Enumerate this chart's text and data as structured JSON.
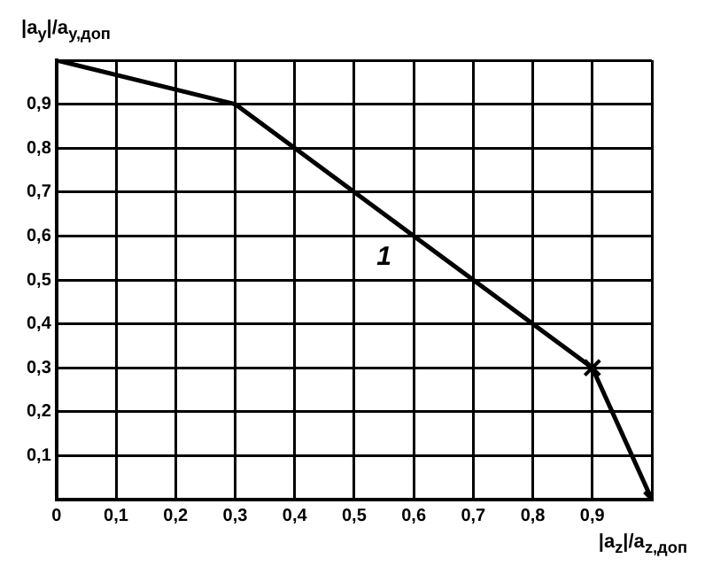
{
  "chart_data": {
    "type": "line",
    "xlabel": "|a$_{z}$|/a$_{z,доп}$",
    "ylabel": "|a$_{y}$|/a$_{y,доп}$",
    "x": [
      0,
      0.3,
      0.9,
      1
    ],
    "series": [
      {
        "color": "#000000",
        "values": [
          1,
          0.9,
          0.3,
          0
        ],
        "marker": "none"
      },
      {
        "type": "scatter",
        "color": "#000000",
        "x": [
          0.9,
          1
        ],
        "values": [
          0.3,
          0
        ],
        "marker": "cross"
      }
    ],
    "xlim": [
      0,
      1
    ],
    "ylim": [
      0,
      1
    ],
    "xticks": [
      {
        "value": 0,
        "label": "0"
      },
      {
        "value": 0.1,
        "label": "0,1"
      },
      {
        "value": 0.2,
        "label": "0,2"
      },
      {
        "value": 0.3,
        "label": "0,3"
      },
      {
        "value": 0.4,
        "label": "0,4"
      },
      {
        "value": 0.5,
        "label": "0,5"
      },
      {
        "value": 0.6,
        "label": "0,6"
      },
      {
        "value": 0.7,
        "label": "0,7"
      },
      {
        "value": 0.8,
        "label": "0,8"
      },
      {
        "value": 0.9,
        "label": "0,9"
      },
      {
        "value": 1,
        "label": null
      }
    ],
    "yticks": [
      {
        "value": 0,
        "label": null
      },
      {
        "value": 0.1,
        "label": "0,1"
      },
      {
        "value": 0.2,
        "label": "0,2"
      },
      {
        "value": 0.3,
        "label": "0,3"
      },
      {
        "value": 0.4,
        "label": "0,4"
      },
      {
        "value": 0.5,
        "label": "0,5"
      },
      {
        "value": 0.6,
        "label": "0,6"
      },
      {
        "value": 0.7,
        "label": "0,7"
      },
      {
        "value": 0.8,
        "label": "0,8"
      },
      {
        "value": 0.9,
        "label": "0,9"
      },
      {
        "value": 1,
        "label": null
      }
    ],
    "grid": true,
    "legend": false,
    "annotations": [
      "1"
    ]
  }
}
